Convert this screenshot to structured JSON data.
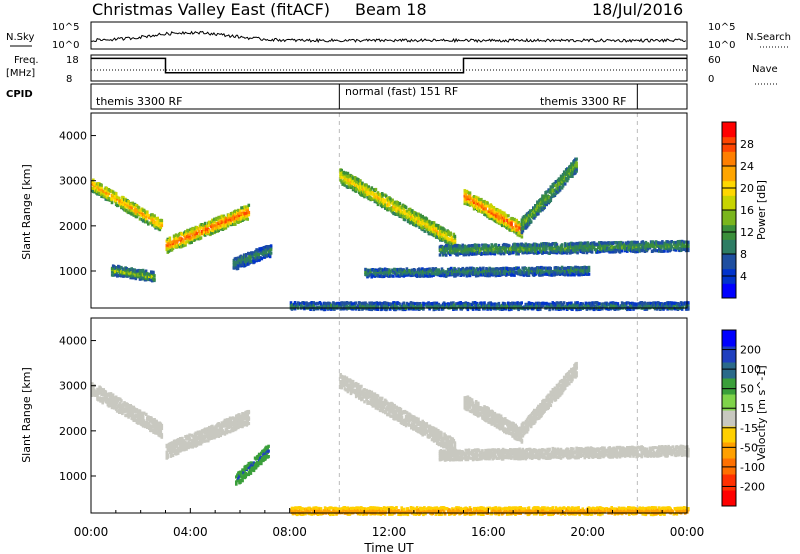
{
  "header": {
    "station": "Christmas Valley East (fitACF)",
    "beam": "Beam 18",
    "date": "18/Jul/2016"
  },
  "side_labels": {
    "nsky": "N.Sky",
    "nsky_top": "10^5",
    "nsky_bottom": "10^0",
    "nsearch": "N.Search",
    "nsearch_top": "10^5",
    "nsearch_bottom": "10^0",
    "freq": "Freq.",
    "freq_unit": "[MHz]",
    "freq_top": "18",
    "freq_bottom": "8",
    "nave_top": "60",
    "nave_bottom": "0",
    "nave": "Nave",
    "cpid": "CPID"
  },
  "cpid_segments": [
    "themis 3300 RF",
    "normal (fast) 151 RF",
    "themis 3300 RF"
  ],
  "x_axis": {
    "label": "Time UT",
    "ticks": [
      "00:00",
      "04:00",
      "08:00",
      "12:00",
      "16:00",
      "20:00",
      "00:00"
    ],
    "range_hours": [
      0,
      24
    ]
  },
  "y_axis": {
    "label": "Slant Range [km]",
    "ticks": [
      "1000",
      "2000",
      "3000",
      "4000"
    ],
    "range_km": [
      180,
      4500
    ]
  },
  "power_bar": {
    "label": "Power [dB]",
    "ticks": [
      "4",
      "8",
      "12",
      "16",
      "20",
      "24",
      "28"
    ],
    "colors": [
      "#0000ff",
      "#0033cc",
      "#1f4fa0",
      "#2e7d64",
      "#3a8f3a",
      "#7ab51d",
      "#c8d400",
      "#ffd700",
      "#ffa500",
      "#ff7f00",
      "#ff4500",
      "#ff0000"
    ]
  },
  "velocity_bar": {
    "label": "Velocity [m s^-1]",
    "ticks": [
      "200",
      "100",
      "50",
      "15",
      "-15",
      "-50",
      "-100",
      "-200"
    ],
    "colors": [
      "#0000ff",
      "#1f3fbf",
      "#2a6a8a",
      "#3a9f3a",
      "#7fd34a",
      "#c8c8c0",
      "#ffd000",
      "#ffa000",
      "#ff7000",
      "#ff3000",
      "#ff0000"
    ]
  },
  "chart_data": {
    "type": "heatmap",
    "title": "Christmas Valley East (fitACF) Beam 18",
    "xlabel": "Time UT",
    "ylabel": "Slant Range [km]",
    "xlim_hours": [
      0,
      24
    ],
    "ylim_km": [
      180,
      4500
    ],
    "power_blobs": [
      {
        "t0": 0.0,
        "t1": 2.8,
        "r_start": 2950,
        "r_end": 2050,
        "power_db": 22,
        "halfwidth_km": 130
      },
      {
        "t0": 3.0,
        "t1": 6.3,
        "r_start": 1600,
        "r_end": 2350,
        "power_db": 26,
        "halfwidth_km": 140
      },
      {
        "t0": 0.8,
        "t1": 2.5,
        "r_start": 1050,
        "r_end": 900,
        "power_db": 14,
        "halfwidth_km": 90
      },
      {
        "t0": 5.7,
        "t1": 7.2,
        "r_start": 1200,
        "r_end": 1500,
        "power_db": 10,
        "halfwidth_km": 120
      },
      {
        "t0": 10.0,
        "t1": 14.6,
        "r_start": 3150,
        "r_end": 1700,
        "power_db": 20,
        "halfwidth_km": 150
      },
      {
        "t0": 15.0,
        "t1": 17.3,
        "r_start": 2700,
        "r_end": 1950,
        "power_db": 26,
        "halfwidth_km": 150
      },
      {
        "t0": 17.3,
        "t1": 19.5,
        "r_start": 2050,
        "r_end": 3400,
        "power_db": 14,
        "halfwidth_km": 150
      },
      {
        "t0": 14.0,
        "t1": 24.0,
        "r_start": 1500,
        "r_end": 1600,
        "power_db": 12,
        "halfwidth_km": 100
      },
      {
        "t0": 11.0,
        "t1": 20.0,
        "r_start": 1000,
        "r_end": 1050,
        "power_db": 10,
        "halfwidth_km": 80
      },
      {
        "t0": 8.0,
        "t1": 24.0,
        "r_start": 250,
        "r_end": 250,
        "power_db": 10,
        "halfwidth_km": 70
      }
    ],
    "velocity_blobs": [
      {
        "t0": 0.0,
        "t1": 2.8,
        "r_start": 2950,
        "r_end": 2050,
        "velocity": 0,
        "halfwidth_km": 140
      },
      {
        "t0": 3.0,
        "t1": 6.3,
        "r_start": 1600,
        "r_end": 2350,
        "velocity": 0,
        "halfwidth_km": 150
      },
      {
        "t0": 5.8,
        "t1": 7.1,
        "r_start": 950,
        "r_end": 1600,
        "velocity": 80,
        "halfwidth_km": 130
      },
      {
        "t0": 10.0,
        "t1": 14.6,
        "r_start": 3150,
        "r_end": 1700,
        "velocity": 0,
        "halfwidth_km": 150
      },
      {
        "t0": 15.0,
        "t1": 17.3,
        "r_start": 2700,
        "r_end": 1950,
        "velocity": 0,
        "halfwidth_km": 150
      },
      {
        "t0": 17.3,
        "t1": 19.5,
        "r_start": 2050,
        "r_end": 3400,
        "velocity": 0,
        "halfwidth_km": 150
      },
      {
        "t0": 14.0,
        "t1": 24.0,
        "r_start": 1500,
        "r_end": 1600,
        "velocity": 0,
        "halfwidth_km": 100
      },
      {
        "t0": 8.0,
        "t1": 24.0,
        "r_start": 250,
        "r_end": 250,
        "velocity": -70,
        "halfwidth_km": 70
      }
    ],
    "frequency_mhz": [
      {
        "t0": 0,
        "t1": 3,
        "value": 17
      },
      {
        "t0": 3,
        "t1": 15,
        "value": 11
      },
      {
        "t0": 15,
        "t1": 24,
        "value": 17
      }
    ],
    "cpid_boundaries_hours": [
      10.0,
      22.0
    ],
    "nsky_level": 1.2
  }
}
